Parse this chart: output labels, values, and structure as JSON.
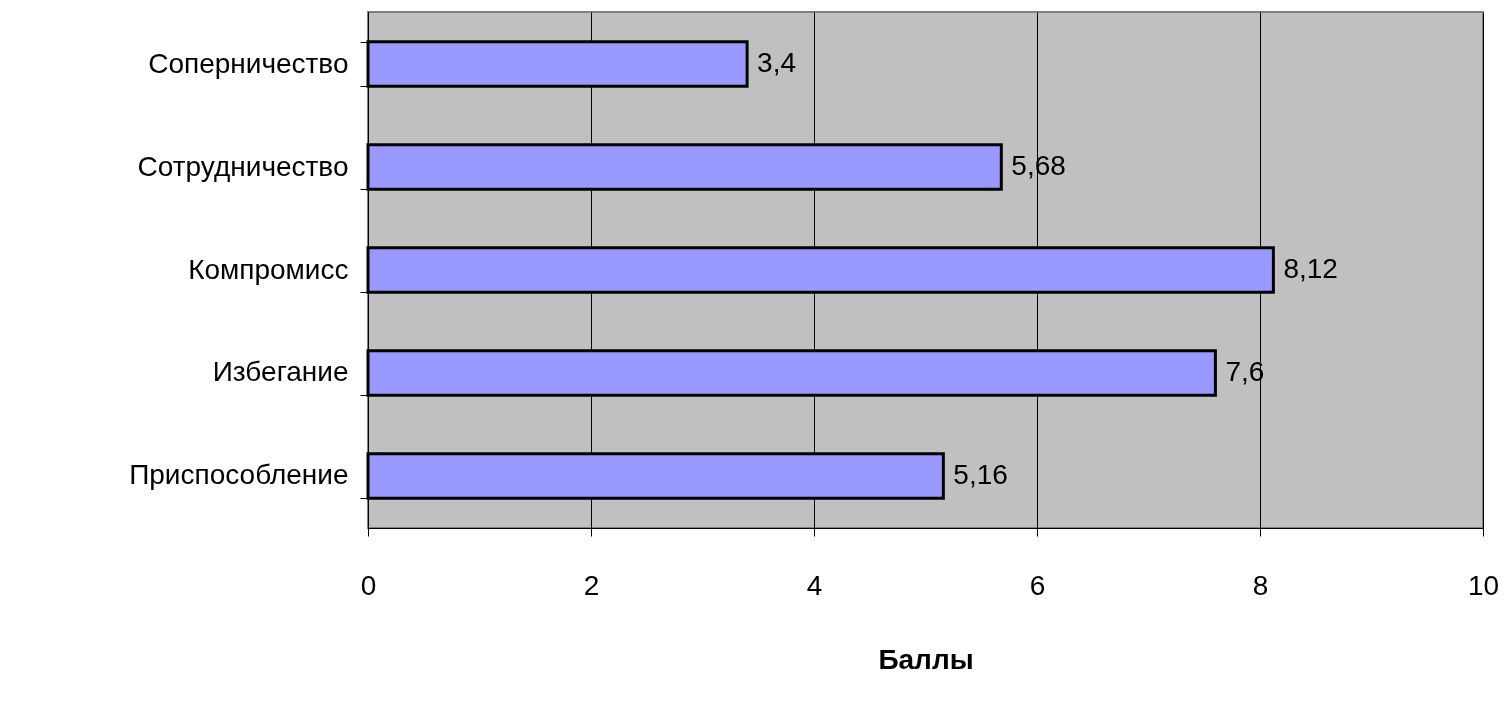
{
  "chart_data": {
    "type": "bar",
    "orientation": "horizontal",
    "xlabel": "Баллы",
    "categories": [
      "Соперничество",
      "Сотрудничество",
      "Компромисс",
      "Избегание",
      "Приспособление"
    ],
    "values": [
      3.4,
      5.68,
      8.12,
      7.6,
      5.16
    ],
    "value_labels": [
      "3,4",
      "5,68",
      "8,12",
      "7,6",
      "5,16"
    ],
    "color": "#9999ff",
    "xlim": [
      0,
      10
    ],
    "xticks": [
      0,
      2,
      4,
      6,
      8,
      10
    ],
    "grid": "x"
  }
}
